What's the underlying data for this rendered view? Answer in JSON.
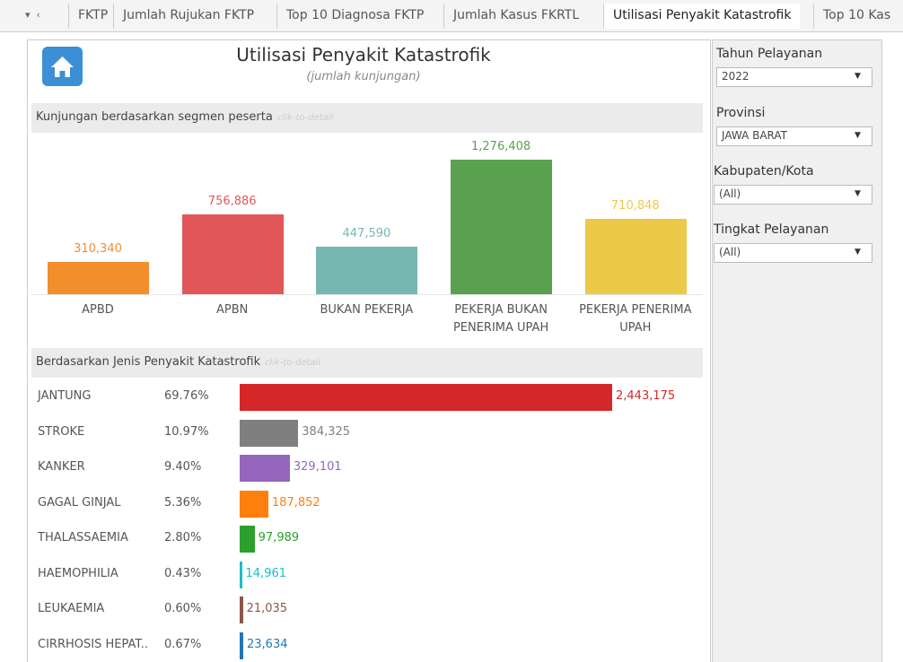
{
  "tabs": [
    "FKTP",
    "Jumlah Rujukan FKTP",
    "Top 10 Diagnosa FKTP",
    "Jumlah Kasus FKRTL",
    "Utilisasi Penyakit Katastrofik",
    "Top 10 Kas"
  ],
  "header": {
    "title": "Utilisasi Penyakit Katastrofik",
    "subtitle": "(jumlah kunjungan)"
  },
  "filters": [
    {
      "label": "Tahun Pelayanan",
      "value": "2022"
    },
    {
      "label": "Provinsi",
      "value": "JAWA BARAT"
    },
    {
      "label": "Kabupaten/Kota",
      "value": "(All)"
    },
    {
      "label": "Tingkat Pelayanan",
      "value": "(All)"
    }
  ],
  "chart_data": [
    {
      "type": "bar",
      "title": "Kunjungan berdasarkan segmen peserta",
      "hint": "clik-to-detail",
      "categories": [
        "APBD",
        "APBN",
        "BUKAN PEKERJA",
        "PEKERJA BUKAN PENERIMA UPAH",
        "PEKERJA PENERIMA UPAH"
      ],
      "values": [
        310340,
        756886,
        447590,
        1276408,
        710848
      ],
      "value_labels": [
        "310,340",
        "756,886",
        "447,590",
        "1,276,408",
        "710,848"
      ],
      "colors": [
        "#f28e2b",
        "#e15759",
        "#76b7b2",
        "#59a14f",
        "#edc948"
      ]
    },
    {
      "type": "hbar",
      "title": "Berdasarkan Jenis Penyakit Katastrofik",
      "hint": "clik-to-detail",
      "categories": [
        "JANTUNG",
        "STROKE",
        "KANKER",
        "GAGAL GINJAL",
        "THALASSAEMIA",
        "HAEMOPHILIA",
        "LEUKAEMIA",
        "CIRRHOSIS HEPAT.."
      ],
      "share_labels": [
        "69.76%",
        "10.97%",
        "9.40%",
        "5.36%",
        "2.80%",
        "0.43%",
        "0.60%",
        "0.67%"
      ],
      "values": [
        2443175,
        384325,
        329101,
        187852,
        97989,
        14961,
        21035,
        23634
      ],
      "value_labels": [
        "2,443,175",
        "384,325",
        "329,101",
        "187,852",
        "97,989",
        "14,961",
        "21,035",
        "23,634"
      ],
      "colors": [
        "#d62728",
        "#7f7f7f",
        "#9467bd",
        "#ff7f0e",
        "#2ca02c",
        "#17becf",
        "#8c564b",
        "#1f77b4"
      ]
    }
  ]
}
